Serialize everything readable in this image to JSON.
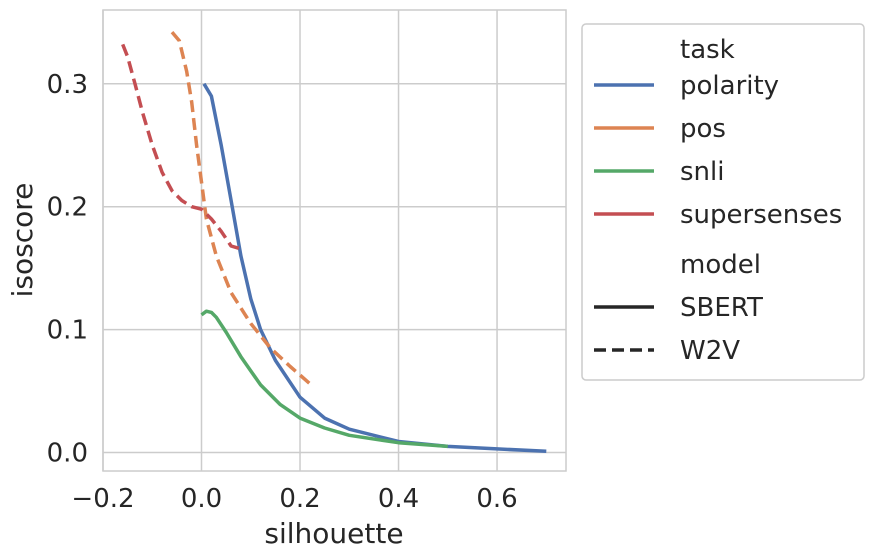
{
  "chart_data": {
    "type": "line",
    "xlabel": "silhouette",
    "ylabel": "isoscore",
    "xlim": [
      -0.2,
      0.74
    ],
    "ylim": [
      -0.015,
      0.36
    ],
    "xticks": [
      -0.2,
      0.0,
      0.2,
      0.4,
      0.6
    ],
    "xtick_labels": [
      "−0.2",
      "0.0",
      "0.2",
      "0.4",
      "0.6"
    ],
    "yticks": [
      0.0,
      0.1,
      0.2,
      0.3
    ],
    "ytick_labels": [
      "0.0",
      "0.1",
      "0.2",
      "0.3"
    ],
    "grid": true,
    "legend_position": "outside-right",
    "legend": {
      "task_title": "task",
      "model_title": "model",
      "tasks": [
        {
          "name": "polarity",
          "color": "#4c72b0"
        },
        {
          "name": "pos",
          "color": "#dd8452"
        },
        {
          "name": "snli",
          "color": "#55a868"
        },
        {
          "name": "supersenses",
          "color": "#c44e52"
        }
      ],
      "models": [
        {
          "name": "SBERT",
          "style": "solid"
        },
        {
          "name": "W2V",
          "style": "dashed"
        }
      ]
    },
    "series": [
      {
        "task": "polarity",
        "model": "SBERT",
        "color": "#4c72b0",
        "dash": "solid",
        "x": [
          0.005,
          0.02,
          0.04,
          0.06,
          0.08,
          0.1,
          0.12,
          0.15,
          0.2,
          0.25,
          0.3,
          0.4,
          0.5,
          0.6,
          0.7
        ],
        "y": [
          0.3,
          0.29,
          0.25,
          0.205,
          0.16,
          0.125,
          0.1,
          0.075,
          0.045,
          0.028,
          0.019,
          0.009,
          0.005,
          0.003,
          0.001
        ]
      },
      {
        "task": "pos",
        "model": "W2V",
        "color": "#dd8452",
        "dash": "dashed",
        "x": [
          -0.06,
          -0.045,
          -0.03,
          -0.02,
          -0.01,
          0.0,
          0.01,
          0.03,
          0.06,
          0.1,
          0.14,
          0.18,
          0.22
        ],
        "y": [
          0.342,
          0.335,
          0.31,
          0.285,
          0.25,
          0.22,
          0.19,
          0.16,
          0.13,
          0.105,
          0.085,
          0.07,
          0.056
        ]
      },
      {
        "task": "snli",
        "model": "SBERT",
        "color": "#55a868",
        "dash": "solid",
        "x": [
          0.0,
          0.01,
          0.02,
          0.03,
          0.05,
          0.08,
          0.12,
          0.16,
          0.2,
          0.25,
          0.3,
          0.4,
          0.5
        ],
        "y": [
          0.112,
          0.115,
          0.114,
          0.11,
          0.098,
          0.078,
          0.055,
          0.039,
          0.028,
          0.02,
          0.014,
          0.008,
          0.005
        ]
      },
      {
        "task": "supersenses",
        "model": "W2V",
        "color": "#c44e52",
        "dash": "dashed",
        "x": [
          -0.16,
          -0.15,
          -0.135,
          -0.12,
          -0.1,
          -0.08,
          -0.06,
          -0.04,
          -0.02,
          0.0,
          0.02,
          0.04,
          0.06,
          0.085
        ],
        "y": [
          0.332,
          0.322,
          0.3,
          0.277,
          0.25,
          0.228,
          0.213,
          0.205,
          0.2,
          0.198,
          0.19,
          0.18,
          0.168,
          0.165
        ]
      }
    ]
  }
}
